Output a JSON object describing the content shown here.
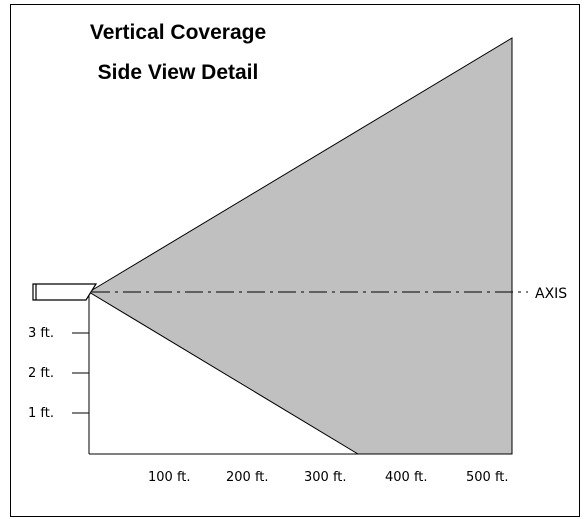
{
  "title_line1": "Vertical Coverage",
  "title_line2": "Side View Detail",
  "axis_label": "AXIS",
  "height_labels": [
    "3 ft.",
    "2 ft.",
    "1 ft."
  ],
  "distance_labels": [
    "100 ft.",
    "200 ft.",
    "300 ft.",
    "400 ft.",
    "500 ft."
  ],
  "colors": {
    "coverage_fill": "#c0c0c0",
    "line": "#000000",
    "background": "#ffffff"
  }
}
